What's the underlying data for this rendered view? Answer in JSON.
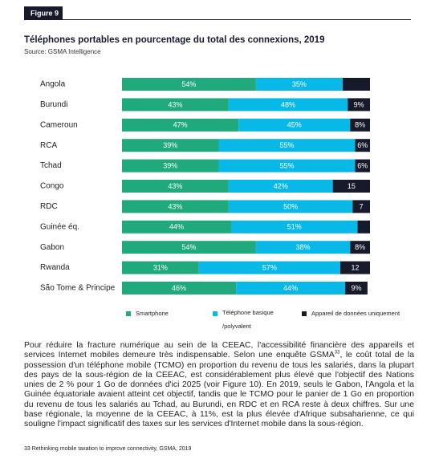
{
  "figure_label": "Figure 9",
  "chart_data": {
    "type": "stacked-bar-horizontal",
    "title": "Téléphones portables en pourcentage du total des connexions, 2019",
    "subtitle": "Source: GSMA Intelligence",
    "categories": [
      "Angola",
      "Burundi",
      "Cameroun",
      "RCA",
      "Tchad",
      "Congo",
      "RDC",
      "Guinée éq.",
      "Gabon",
      "Rwanda",
      "São Tome & Principe"
    ],
    "xlim": [
      0,
      100
    ],
    "series": [
      {
        "name": "Smartphone",
        "color": "#1fa97c",
        "values": [
          54,
          43,
          47,
          39,
          39,
          43,
          43,
          44,
          54,
          31,
          46
        ],
        "value_labels": [
          "54%",
          "43%",
          "47%",
          "39%",
          "39%",
          "43%",
          "43%",
          "44%",
          "54%",
          "31%",
          "46%"
        ]
      },
      {
        "name": "Téléphone basique /polyvalent",
        "color": "#08b9e8",
        "values": [
          35,
          48,
          45,
          55,
          55,
          42,
          50,
          51,
          38,
          57,
          44
        ],
        "value_labels": [
          "35%",
          "48%",
          "45%",
          "55%",
          "55%",
          "42%",
          "50%",
          "51%",
          "38%",
          "57%",
          "44%"
        ]
      },
      {
        "name": "Appareil de données uniquement",
        "color": "#161a2b",
        "values": [
          11,
          9,
          8,
          6,
          6,
          15,
          7,
          5,
          8,
          12,
          9
        ],
        "value_labels": [
          null,
          "9%",
          "8%",
          "6%",
          "6%",
          "15",
          "7",
          null,
          "8%",
          "12",
          "9%"
        ]
      }
    ],
    "legend": "bottom"
  },
  "body_text": [
    "Pour réduire la fracture numérique au sein de la CEEAC, l'accessibilité financière des appareils et services Internet mobiles demeure très indispensable. Selon une enquête GSMA",
    "33",
    ", le coût total de la possession d'un téléphone mobile (TCMO) en proportion du revenu de tous les salariés, dans la plupart des pays de la sous-région de la CEEAC, est considérablement plus élevé que l'objectif des Nations unies de 2 % pour 1 Go de données d'ici 2025 (voir Figure 10). En 2019, seuls le Gabon, l'Angola et la Guinée équatoriale avaient atteint cet objectif, tandis que le TCMO pour le panier de 1 Go en proportion du revenu de tous les salariés au Tchad, au Burundi, en RDC et en RCA reste à deux chiffres. Sur une base régionale, la moyenne de la CEEAC, à 11%, est la plus élevée d'Afrique subsaharienne, ce qui souligne l'impact significatif des taxes sur les services d'Internet mobile dans la sous-région."
  ],
  "footer": "33 Rethinking mobile taxation to improve connectivity, GSMA, 2019"
}
